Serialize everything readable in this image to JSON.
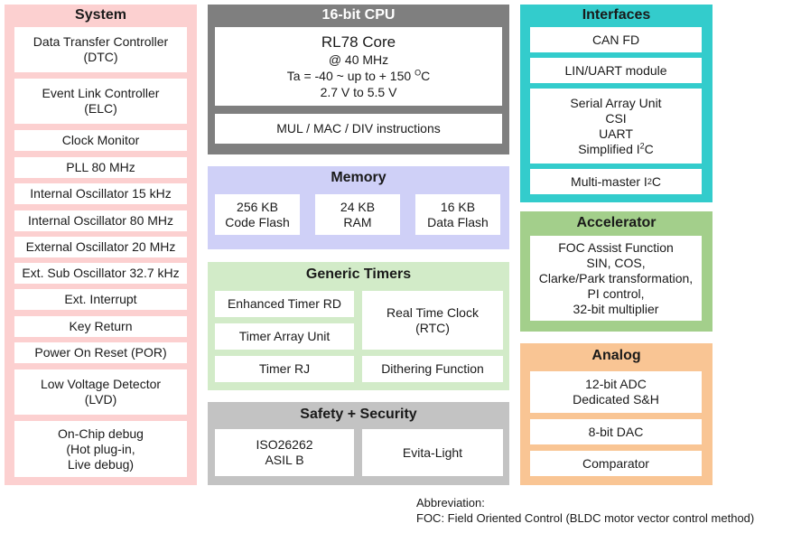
{
  "system": {
    "title": "System",
    "items": [
      "Data Transfer Controller\n(DTC)",
      "Event Link Controller\n(ELC)",
      "Clock Monitor",
      "PLL 80 MHz",
      "Internal Oscillator 15 kHz",
      "Internal Oscillator 80 MHz",
      "External Oscillator 20 MHz",
      "Ext. Sub Oscillator 32.7 kHz",
      "Ext. Interrupt",
      "Key Return",
      "Power On Reset (POR)",
      "Low Voltage Detector\n(LVD)",
      "On-Chip debug\n(Hot plug-in,\nLive debug)"
    ]
  },
  "cpu": {
    "title": "16-bit CPU",
    "core_name": "RL78 Core",
    "freq": "@ 40 MHz",
    "temp_prefix": "Ta = -40 ~ up to + 150 ",
    "temp_sup": "O",
    "temp_unit": "C",
    "voltage": "2.7 V to 5.5 V",
    "instructions": "MUL / MAC / DIV instructions"
  },
  "memory": {
    "title": "Memory",
    "items": [
      "256 KB\nCode Flash",
      "24 KB\nRAM",
      "16 KB\nData Flash"
    ]
  },
  "timers": {
    "title": "Generic Timers",
    "enhanced": "Enhanced Timer RD",
    "array": "Timer Array Unit",
    "rj": "Timer RJ",
    "rtc": "Real Time Clock\n(RTC)",
    "dither": "Dithering Function"
  },
  "safety": {
    "title": "Safety + Security",
    "iso": "ISO26262\nASIL B",
    "evita": "Evita-Light"
  },
  "interfaces": {
    "title": "Interfaces",
    "can": "CAN FD",
    "lin": "LIN/UART module",
    "sau_lines": "Serial Array Unit\nCSI\nUART",
    "sau_i2c_prefix": "Simplified I",
    "sau_i2c_sup": "2",
    "sau_i2c_suffix": "C",
    "mm_prefix": "Multi-master I",
    "mm_sup": "2",
    "mm_suffix": "C"
  },
  "accelerator": {
    "title": "Accelerator",
    "foc": "FOC Assist Function\nSIN, COS,\nClarke/Park transformation,\nPI control,\n32-bit multiplier"
  },
  "analog": {
    "title": "Analog",
    "adc": "12-bit ADC\nDedicated S&H",
    "dac": "8-bit DAC",
    "comparator": "Comparator"
  },
  "footnote": {
    "label": "Abbreviation:",
    "text": "FOC: Field Oriented Control (BLDC motor vector control method)"
  },
  "colors": {
    "system": "#fcd0d0",
    "cpu": "#7f7f7f",
    "memory": "#cfd0f7",
    "timers": "#d2ebc8",
    "safety": "#c3c3c3",
    "interfaces": "#33cccc",
    "accelerator": "#a3cf8b",
    "analog": "#f9c594"
  }
}
